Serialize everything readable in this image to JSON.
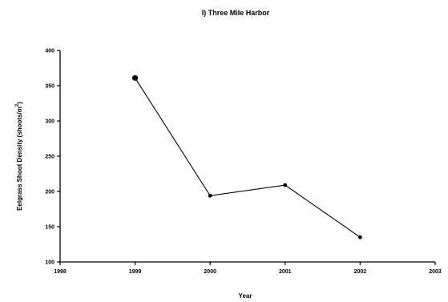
{
  "chart_data": {
    "type": "line",
    "title": "I)  Three Mile Harbor",
    "xlabel": "Year",
    "ylabel": "Eelgrass Shoot Density (shoots/m",
    "ylabel_superscript": "2",
    "ylabel_close": ")",
    "xlim": [
      1998,
      2003
    ],
    "ylim": [
      100,
      400
    ],
    "x_ticks": [
      1998,
      1999,
      2000,
      2001,
      2002,
      2003
    ],
    "x_tick_labels": [
      "1998",
      "1999",
      "2000",
      "2001",
      "2002",
      "2003"
    ],
    "y_ticks": [
      100,
      150,
      200,
      250,
      300,
      350,
      400
    ],
    "y_tick_labels": [
      "100",
      "150",
      "200",
      "250",
      "300",
      "350",
      "400"
    ],
    "series": [
      {
        "x": [
          1999,
          2000,
          2001,
          2002
        ],
        "y": [
          361,
          194,
          209,
          135
        ]
      }
    ],
    "grid": false,
    "legend": "none",
    "line_color": "#000000"
  }
}
